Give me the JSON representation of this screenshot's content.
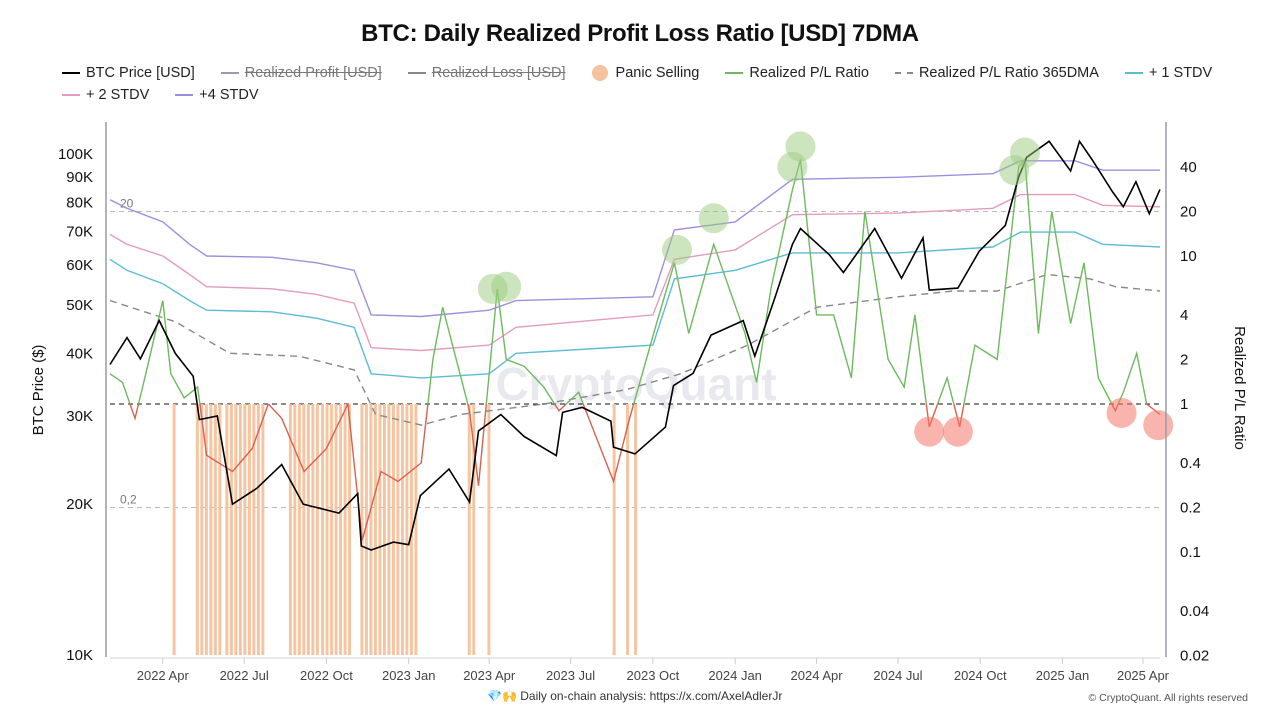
{
  "chart_data": {
    "type": "line",
    "title": "BTC: Daily Realized Profit Loss Ratio [USD] 7DMA",
    "legend_placement": "top",
    "legend": [
      {
        "name": "BTC Price [USD]",
        "color": "#000000",
        "style": "solid",
        "enabled": true
      },
      {
        "name": "Realized Profit [USD]",
        "color": "#9a9ab0",
        "style": "solid",
        "enabled": false
      },
      {
        "name": "Realized Loss [USD]",
        "color": "#888888",
        "style": "solid",
        "enabled": false
      },
      {
        "name": "Panic Selling",
        "color": "#f4c29c",
        "style": "dot",
        "enabled": true
      },
      {
        "name": "Realized P/L Ratio",
        "color": "#6dba5e",
        "style": "solid",
        "enabled": true
      },
      {
        "name": "Realized P/L Ratio 365DMA",
        "color": "#888888",
        "style": "dashed",
        "enabled": true
      },
      {
        "name": "+ 1 STDV",
        "color": "#5bbcd6",
        "style": "solid",
        "enabled": true
      },
      {
        "name": "+ 2 STDV",
        "color": "#e59bbf",
        "style": "solid",
        "enabled": true
      },
      {
        "name": "+4 STDV",
        "color": "#9b90e0",
        "style": "solid",
        "enabled": true
      }
    ],
    "xlabel": "",
    "x_ticks": [
      "2022 Apr",
      "2022 Jul",
      "2022 Oct",
      "2023 Jan",
      "2023 Apr",
      "2023 Jul",
      "2023 Oct",
      "2024 Jan",
      "2024 Apr",
      "2024 Jul",
      "2024 Oct",
      "2025 Jan",
      "2025 Apr"
    ],
    "x_range": [
      "2022-02-01",
      "2025-04-20"
    ],
    "y_left": {
      "label": "BTC Price ($)",
      "scale": "log",
      "range": [
        10000,
        130000
      ],
      "ticks": [
        "10K",
        "20K",
        "30K",
        "40K",
        "50K",
        "60K",
        "70K",
        "80K",
        "90K",
        "100K"
      ],
      "tick_values": [
        10000,
        20000,
        30000,
        40000,
        50000,
        60000,
        70000,
        80000,
        90000,
        100000
      ]
    },
    "y_right": {
      "label": "Realized P/L Ratio",
      "scale": "log",
      "range": [
        0.02,
        80
      ],
      "ticks": [
        "0.02",
        "0.04",
        "0.1",
        "0.2",
        "0.4",
        "1",
        "2",
        "4",
        "10",
        "20",
        "40"
      ],
      "tick_values": [
        0.02,
        0.04,
        0.1,
        0.2,
        0.4,
        1,
        2,
        4,
        10,
        20,
        40
      ]
    },
    "reference_lines": [
      {
        "value": 20,
        "label": "20",
        "axis": "right",
        "style": "dashed-gray"
      },
      {
        "value": 1,
        "label": "",
        "axis": "right",
        "style": "dashed-black"
      },
      {
        "value": 0.2,
        "label": "0,2",
        "axis": "right",
        "style": "dashed-gray"
      }
    ],
    "series": [
      {
        "name": "BTC Price [USD]",
        "axis": "left",
        "x": [
          "2022-02-01",
          "2022-02-20",
          "2022-03-07",
          "2022-03-28",
          "2022-04-15",
          "2022-05-05",
          "2022-05-12",
          "2022-06-01",
          "2022-06-13",
          "2022-06-18",
          "2022-07-15",
          "2022-08-12",
          "2022-09-05",
          "2022-09-15",
          "2022-10-15",
          "2022-11-05",
          "2022-11-09",
          "2022-11-20",
          "2022-12-15",
          "2023-01-01",
          "2023-01-14",
          "2023-02-15",
          "2023-03-10",
          "2023-03-20",
          "2023-04-14",
          "2023-05-10",
          "2023-06-15",
          "2023-06-22",
          "2023-07-14",
          "2023-08-15",
          "2023-08-18",
          "2023-09-11",
          "2023-10-15",
          "2023-10-24",
          "2023-11-15",
          "2023-12-05",
          "2024-01-10",
          "2024-01-23",
          "2024-02-15",
          "2024-03-05",
          "2024-03-14",
          "2024-04-15",
          "2024-05-01",
          "2024-06-05",
          "2024-07-05",
          "2024-07-29",
          "2024-08-05",
          "2024-09-06",
          "2024-09-30",
          "2024-10-29",
          "2024-11-13",
          "2024-11-22",
          "2024-12-17",
          "2025-01-10",
          "2025-01-20",
          "2025-02-03",
          "2025-02-26",
          "2025-03-10",
          "2025-03-24",
          "2025-04-08",
          "2025-04-20"
        ],
        "values": [
          38000,
          43000,
          39000,
          46500,
          40000,
          36000,
          29500,
          30000,
          22500,
          20000,
          21500,
          24000,
          20000,
          19800,
          19200,
          21000,
          16500,
          16200,
          16800,
          16600,
          20800,
          23500,
          20200,
          28000,
          30200,
          27300,
          25000,
          30500,
          31200,
          29300,
          26000,
          25200,
          28500,
          34500,
          36500,
          43500,
          46500,
          39500,
          52000,
          66000,
          71000,
          63000,
          58000,
          71000,
          56500,
          68000,
          53500,
          54000,
          64000,
          72000,
          90000,
          98500,
          106000,
          92500,
          106000,
          97500,
          84000,
          78500,
          88000,
          76000,
          85000
        ]
      },
      {
        "name": "Realized P/L Ratio",
        "axis": "right",
        "x": [
          "2022-02-01",
          "2022-02-15",
          "2022-03-01",
          "2022-03-15",
          "2022-04-01",
          "2022-04-10",
          "2022-04-25",
          "2022-05-10",
          "2022-05-20",
          "2022-06-18",
          "2022-07-10",
          "2022-07-28",
          "2022-08-12",
          "2022-09-06",
          "2022-10-01",
          "2022-10-25",
          "2022-11-10",
          "2022-12-01",
          "2022-12-20",
          "2023-01-15",
          "2023-01-28",
          "2023-02-08",
          "2023-03-10",
          "2023-03-20",
          "2023-04-10",
          "2023-04-20",
          "2023-05-10",
          "2023-06-01",
          "2023-06-18",
          "2023-07-10",
          "2023-08-18",
          "2023-09-05",
          "2023-10-05",
          "2023-10-25",
          "2023-11-10",
          "2023-12-08",
          "2024-01-12",
          "2024-01-25",
          "2024-02-10",
          "2024-03-05",
          "2024-03-14",
          "2024-04-01",
          "2024-04-20",
          "2024-05-10",
          "2024-05-25",
          "2024-06-20",
          "2024-07-08",
          "2024-07-20",
          "2024-08-05",
          "2024-08-25",
          "2024-09-08",
          "2024-09-25",
          "2024-10-20",
          "2024-11-13",
          "2024-11-20",
          "2024-12-05",
          "2024-12-20",
          "2025-01-10",
          "2025-01-25",
          "2025-02-10",
          "2025-03-01",
          "2025-03-10",
          "2025-03-25",
          "2025-04-05",
          "2025-04-20"
        ],
        "values": [
          1.6,
          1.4,
          0.8,
          1.8,
          5.0,
          1.6,
          1.1,
          1.3,
          0.45,
          0.35,
          0.5,
          1.0,
          0.8,
          0.35,
          0.5,
          1.0,
          0.12,
          0.35,
          0.3,
          0.4,
          2.0,
          4.5,
          0.9,
          0.28,
          6.0,
          2.0,
          1.8,
          1.3,
          0.9,
          1.2,
          0.3,
          0.8,
          3.5,
          9.0,
          3.0,
          12.0,
          3.0,
          1.4,
          6.0,
          28.0,
          45.0,
          4.0,
          4.0,
          1.5,
          20.0,
          2.0,
          1.3,
          4.0,
          0.7,
          1.5,
          0.7,
          2.5,
          2.0,
          40.0,
          45.0,
          3.0,
          20.0,
          3.5,
          9.0,
          1.5,
          0.9,
          1.2,
          2.2,
          1.0,
          0.85
        ]
      },
      {
        "name": "Realized P/L Ratio 365DMA",
        "axis": "right",
        "x": [
          "2022-02-01",
          "2022-04-15",
          "2022-06-15",
          "2022-09-01",
          "2022-11-01",
          "2022-11-25",
          "2023-01-15",
          "2023-03-01",
          "2023-06-01",
          "2023-09-01",
          "2023-11-01",
          "2024-01-15",
          "2024-04-01",
          "2024-07-01",
          "2024-09-01",
          "2024-10-20",
          "2024-12-15",
          "2025-02-01",
          "2025-03-01",
          "2025-04-20"
        ],
        "values": [
          5.0,
          3.6,
          2.2,
          2.1,
          1.7,
          0.85,
          0.72,
          0.85,
          1.0,
          1.25,
          1.6,
          2.5,
          4.5,
          5.3,
          5.8,
          5.8,
          7.5,
          7.0,
          6.2,
          5.8
        ]
      },
      {
        "name": "+ 1 STDV",
        "axis": "right",
        "x": [
          "2022-02-01",
          "2022-02-20",
          "2022-04-01",
          "2022-05-01",
          "2022-05-20",
          "2022-08-01",
          "2022-09-20",
          "2022-11-01",
          "2022-11-20",
          "2023-01-15",
          "2023-04-01",
          "2023-05-01",
          "2023-10-01",
          "2023-10-25",
          "2024-01-01",
          "2024-03-05",
          "2024-07-01",
          "2024-10-15",
          "2024-11-15",
          "2025-01-15",
          "2025-02-15",
          "2025-04-20"
        ],
        "values": [
          9.5,
          8.0,
          6.5,
          5.0,
          4.3,
          4.2,
          3.8,
          3.3,
          1.6,
          1.5,
          1.6,
          2.2,
          2.5,
          7.0,
          8.0,
          10.5,
          10.5,
          11.5,
          14.5,
          14.5,
          12.0,
          11.5
        ]
      },
      {
        "name": "+ 2 STDV",
        "axis": "right",
        "x": [
          "2022-02-01",
          "2022-02-20",
          "2022-04-01",
          "2022-05-01",
          "2022-05-20",
          "2022-08-01",
          "2022-09-20",
          "2022-11-01",
          "2022-11-20",
          "2023-01-15",
          "2023-04-01",
          "2023-05-01",
          "2023-10-01",
          "2023-10-25",
          "2024-01-01",
          "2024-03-05",
          "2024-07-01",
          "2024-10-15",
          "2024-11-15",
          "2025-01-15",
          "2025-02-15",
          "2025-04-20"
        ],
        "values": [
          14.0,
          12.0,
          10.0,
          7.5,
          6.2,
          6.0,
          5.5,
          4.8,
          2.4,
          2.3,
          2.5,
          3.3,
          4.0,
          9.5,
          11.0,
          19.0,
          19.5,
          21.0,
          26.0,
          26.0,
          22.0,
          21.5
        ]
      },
      {
        "name": "+4 STDV",
        "axis": "right",
        "x": [
          "2022-02-01",
          "2022-02-20",
          "2022-04-01",
          "2022-05-01",
          "2022-05-20",
          "2022-08-01",
          "2022-09-20",
          "2022-11-01",
          "2022-11-20",
          "2023-01-15",
          "2023-04-01",
          "2023-05-01",
          "2023-10-01",
          "2023-10-25",
          "2024-01-01",
          "2024-03-05",
          "2024-07-01",
          "2024-10-15",
          "2024-11-15",
          "2025-01-15",
          "2025-02-15",
          "2025-04-20"
        ],
        "values": [
          24.0,
          21.0,
          17.0,
          12.0,
          10.0,
          9.8,
          9.0,
          8.0,
          4.0,
          3.9,
          4.3,
          5.0,
          5.3,
          15.0,
          17.0,
          33.0,
          34.0,
          36.0,
          44.0,
          44.0,
          38.0,
          38.0
        ]
      }
    ],
    "panic_selling_periods": [
      [
        "2022-04-12",
        "2022-04-14"
      ],
      [
        "2022-05-08",
        "2022-06-05"
      ],
      [
        "2022-06-10",
        "2022-07-25"
      ],
      [
        "2022-08-20",
        "2022-09-20"
      ],
      [
        "2022-09-25",
        "2022-10-30"
      ],
      [
        "2022-11-08",
        "2023-01-10"
      ],
      [
        "2023-03-08",
        "2023-03-15"
      ],
      [
        "2023-03-30",
        "2023-04-04"
      ],
      [
        "2023-08-17",
        "2023-08-22"
      ],
      [
        "2023-09-01",
        "2023-09-05"
      ],
      [
        "2023-09-10",
        "2023-09-14"
      ]
    ],
    "highlight_markers": [
      {
        "type": "overheated",
        "date": "2023-04-05",
        "value": 6.0
      },
      {
        "type": "overheated",
        "date": "2023-04-20",
        "value": 6.2
      },
      {
        "type": "overheated",
        "date": "2023-10-28",
        "value": 11.0
      },
      {
        "type": "overheated",
        "date": "2023-12-08",
        "value": 18.0
      },
      {
        "type": "overheated",
        "date": "2024-03-05",
        "value": 40.0
      },
      {
        "type": "overheated",
        "date": "2024-03-14",
        "value": 55.0
      },
      {
        "type": "overheated",
        "date": "2024-11-08",
        "value": 38.0
      },
      {
        "type": "overheated",
        "date": "2024-11-20",
        "value": 50.0
      },
      {
        "type": "panic",
        "date": "2024-08-05",
        "value": 0.65
      },
      {
        "type": "panic",
        "date": "2024-09-06",
        "value": 0.65
      },
      {
        "type": "panic",
        "date": "2025-03-08",
        "value": 0.87
      },
      {
        "type": "panic",
        "date": "2025-04-18",
        "value": 0.72
      }
    ],
    "watermark": "CryptoQuant"
  },
  "footer": {
    "analysis_text": "Daily on-chain analysis: https://x.com/AxelAdlerJr",
    "analysis_emoji": "💎🙌",
    "copyright": "© CryptoQuant. All rights reserved"
  }
}
